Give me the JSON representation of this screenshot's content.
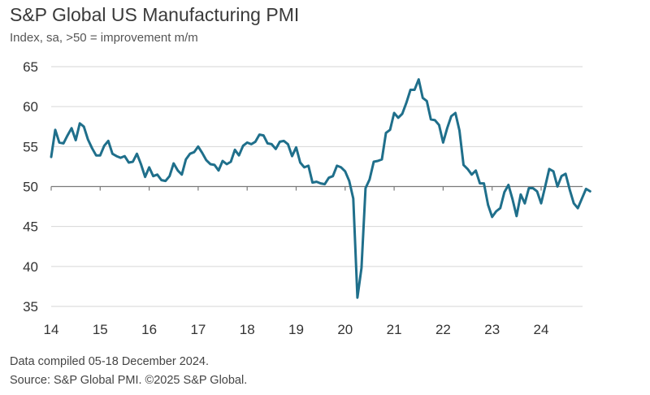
{
  "header": {
    "title": "S&P Global US Manufacturing PMI",
    "subtitle": "Index, sa, >50 = improvement m/m"
  },
  "footer": {
    "note": "Data compiled 05-18 December 2024.",
    "source": "Source: S&P Global PMI. ©2025 S&P Global."
  },
  "colors": {
    "line": "#1f6f8b",
    "grid": "#d6d6d6",
    "axis": "#7a7a7a"
  },
  "chart_data": {
    "type": "line",
    "title": "S&P Global US Manufacturing PMI",
    "subtitle": "Index, sa, >50 = improvement m/m",
    "xlabel": "",
    "ylabel": "",
    "ylim": [
      35,
      65
    ],
    "y_ticks": [
      35,
      40,
      45,
      50,
      55,
      60,
      65
    ],
    "x_ticks": [
      "14",
      "15",
      "16",
      "17",
      "18",
      "19",
      "20",
      "21",
      "22",
      "23",
      "24"
    ],
    "x_axis_crosses_at": 50,
    "grid": "horizontal",
    "legend": "none",
    "series": [
      {
        "frequency": "monthly",
        "start": "2014-01",
        "values": [
          53.7,
          57.1,
          55.5,
          55.4,
          56.4,
          57.3,
          55.8,
          57.9,
          57.5,
          55.9,
          54.8,
          53.9,
          53.9,
          55.1,
          55.7,
          54.1,
          53.8,
          53.6,
          53.8,
          53.0,
          53.1,
          54.1,
          52.8,
          51.2,
          52.4,
          51.3,
          51.5,
          50.8,
          50.7,
          51.3,
          52.9,
          52.0,
          51.5,
          53.4,
          54.1,
          54.3,
          55.0,
          54.2,
          53.3,
          52.8,
          52.7,
          52.0,
          53.2,
          52.8,
          53.1,
          54.6,
          53.9,
          55.1,
          55.5,
          55.3,
          55.6,
          56.5,
          56.4,
          55.4,
          55.3,
          54.7,
          55.6,
          55.7,
          55.3,
          53.8,
          54.9,
          53.0,
          52.4,
          52.6,
          50.5,
          50.6,
          50.4,
          50.3,
          51.1,
          51.3,
          52.6,
          52.4,
          51.9,
          50.7,
          48.5,
          36.1,
          39.8,
          49.8,
          50.9,
          53.1,
          53.2,
          53.4,
          56.7,
          57.1,
          59.2,
          58.6,
          59.1,
          60.5,
          62.1,
          62.1,
          63.4,
          61.1,
          60.7,
          58.4,
          58.3,
          57.7,
          55.5,
          57.3,
          58.8,
          59.2,
          57.0,
          52.7,
          52.2,
          51.5,
          52.0,
          50.4,
          50.4,
          47.7,
          46.2,
          46.9,
          47.3,
          49.3,
          50.2,
          48.4,
          46.3,
          49.0,
          47.9,
          49.8,
          49.8,
          49.4,
          47.9,
          50.0,
          52.2,
          51.9,
          50.0,
          51.3,
          51.6,
          49.6,
          47.9,
          47.3,
          48.5,
          49.7,
          49.4
        ]
      }
    ]
  }
}
